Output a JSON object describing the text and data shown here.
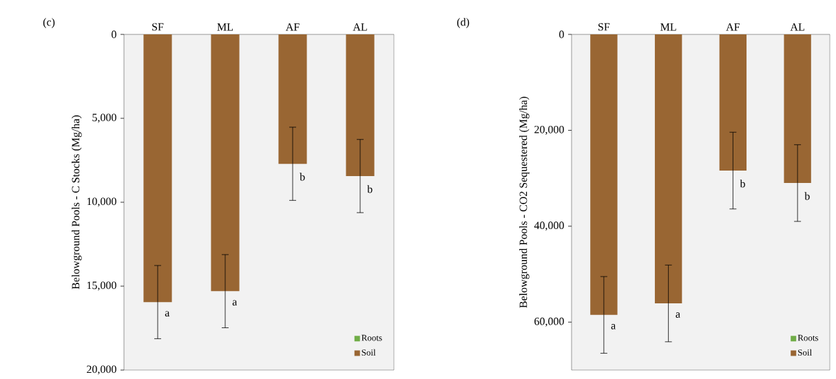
{
  "chart_data": [
    {
      "type": "bar",
      "title": "(c)",
      "ylabel": "Belowground Pools - C Stocks (Mg/ha)",
      "categories": [
        "SF",
        "ML",
        "AF",
        "AL"
      ],
      "stacked": true,
      "series": [
        {
          "name": "Roots",
          "color": "#70ad47",
          "values": [
            null,
            null,
            null,
            null
          ]
        },
        {
          "name": "Soil",
          "color": "#996633",
          "values": [
            15950,
            15300,
            7710,
            8440
          ],
          "errors": [
            2180,
            2180,
            2180,
            2180
          ]
        }
      ],
      "ylim": [
        20000,
        0
      ],
      "yticks": [
        {
          "value": 0,
          "label": "0"
        },
        {
          "value": 5000,
          "label": "5,000"
        },
        {
          "value": 10000,
          "label": "10,000"
        },
        {
          "value": 15000,
          "label": "15,000"
        },
        {
          "value": 20000,
          "label": "20,000"
        }
      ],
      "legend": "bottom right",
      "annotations": [
        {
          "text": "a",
          "x": "SF",
          "y": 15950
        },
        {
          "text": "a",
          "x": "ML",
          "y": 15300
        },
        {
          "text": "b",
          "x": "AF",
          "y": 7710
        },
        {
          "text": "b",
          "x": "AL",
          "y": 8440
        }
      ]
    },
    {
      "type": "bar",
      "title": "(d)",
      "ylabel": "Belowground Pools - CO2 Sequestered (Mg/ha)",
      "categories": [
        "SF",
        "ML",
        "AF",
        "AL"
      ],
      "stacked": true,
      "series": [
        {
          "name": "Roots",
          "color": "#70ad47",
          "values": [
            null,
            null,
            null,
            null
          ]
        },
        {
          "name": "Soil",
          "color": "#996633",
          "values": [
            58500,
            56100,
            28400,
            31000
          ],
          "errors": [
            8000,
            8000,
            8000,
            8000
          ]
        }
      ],
      "ylim": [
        70000,
        0
      ],
      "yticks": [
        {
          "value": 0,
          "label": "0"
        },
        {
          "value": 20000,
          "label": "20,000"
        },
        {
          "value": 40000,
          "label": "40,000"
        },
        {
          "value": 60000,
          "label": "60,000"
        }
      ],
      "legend": "bottom right",
      "annotations": [
        {
          "text": "a",
          "x": "SF",
          "y": 58500
        },
        {
          "text": "a",
          "x": "ML",
          "y": 56100
        },
        {
          "text": "b",
          "x": "AF",
          "y": 28400
        },
        {
          "text": "b",
          "x": "AL",
          "y": 31000
        }
      ]
    }
  ]
}
